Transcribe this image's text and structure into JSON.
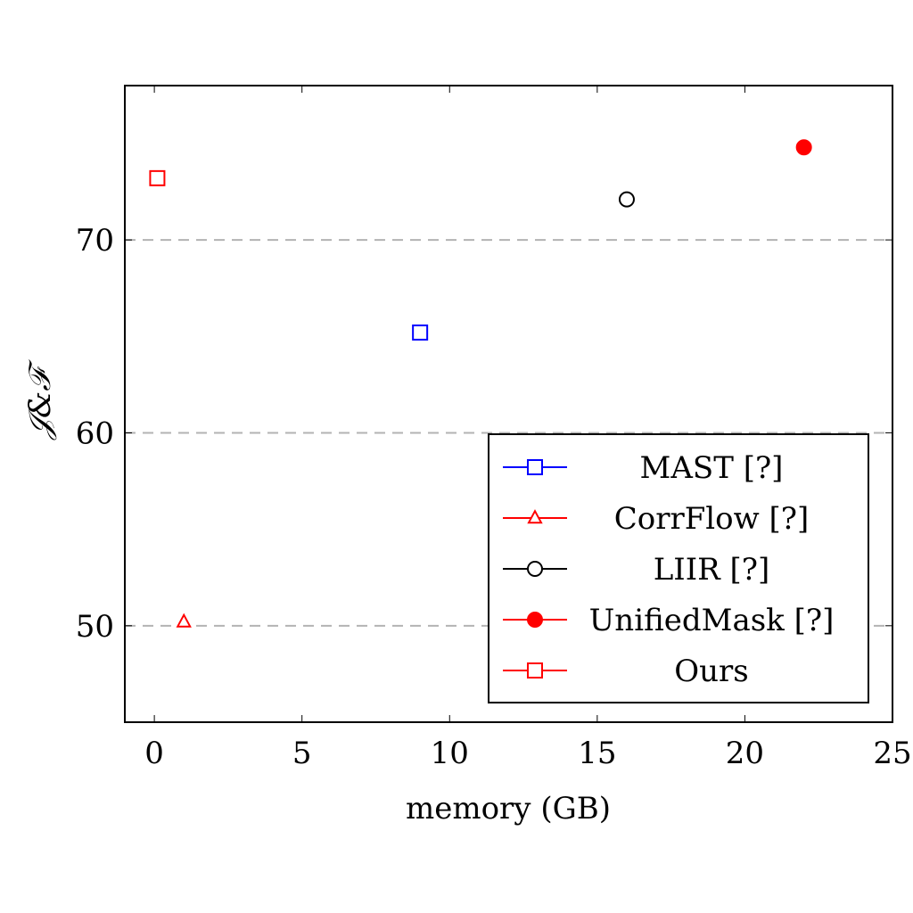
{
  "chart_data": {
    "type": "scatter",
    "xlabel": "memory (GB)",
    "ylabel": "𝒥&ℱ",
    "xlim": [
      -1,
      25
    ],
    "ylim": [
      45,
      78
    ],
    "xticks": [
      0,
      5,
      10,
      15,
      20,
      25
    ],
    "yticks": [
      50,
      60,
      70
    ],
    "grid": "horizontal dashed",
    "legend_position": "bottom-right",
    "series": [
      {
        "name": "MAST [?]",
        "x": [
          9.0
        ],
        "y": [
          65.2
        ],
        "color": "#0000ff",
        "marker": "square-open"
      },
      {
        "name": "CorrFlow [?]",
        "x": [
          1.0
        ],
        "y": [
          50.2
        ],
        "color": "#ff0000",
        "marker": "triangle-open"
      },
      {
        "name": "LIIR [?]",
        "x": [
          16.0
        ],
        "y": [
          72.1
        ],
        "color": "#000000",
        "marker": "circle-open"
      },
      {
        "name": "UnifiedMask [?]",
        "x": [
          22.0
        ],
        "y": [
          74.8
        ],
        "color": "#ff0000",
        "marker": "circle-filled"
      },
      {
        "name": "Ours",
        "x": [
          0.1
        ],
        "y": [
          73.2
        ],
        "color": "#ff0000",
        "marker": "square-open"
      }
    ]
  }
}
